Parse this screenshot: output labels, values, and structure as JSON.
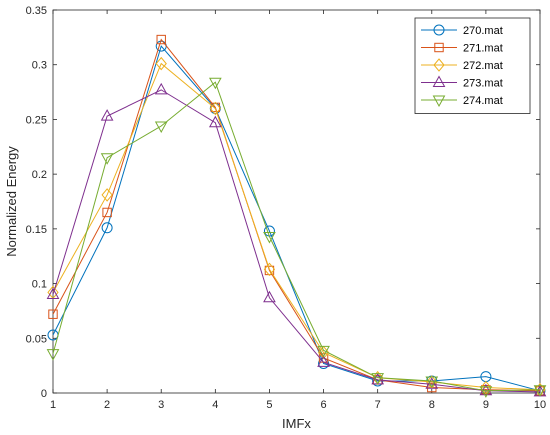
{
  "chart_data": {
    "type": "line",
    "title": "",
    "xlabel": "IMFx",
    "ylabel": "Normalized Energy",
    "x": [
      1,
      2,
      3,
      4,
      5,
      6,
      7,
      8,
      9,
      10
    ],
    "xlim": [
      1,
      10
    ],
    "ylim": [
      0,
      0.35
    ],
    "xticks": [
      "1",
      "2",
      "3",
      "4",
      "5",
      "6",
      "7",
      "8",
      "9",
      "10"
    ],
    "yticks": [
      "0",
      "0.05",
      "0.1",
      "0.15",
      "0.2",
      "0.25",
      "0.3",
      "0.35"
    ],
    "grid": false,
    "legend_position": "top-right",
    "series": [
      {
        "name": "270.mat",
        "color": "#0072BD",
        "marker": "circle",
        "values": [
          0.053,
          0.151,
          0.317,
          0.26,
          0.148,
          0.027,
          0.011,
          0.011,
          0.015,
          0.002
        ]
      },
      {
        "name": "271.mat",
        "color": "#D95319",
        "marker": "square",
        "values": [
          0.072,
          0.165,
          0.323,
          0.261,
          0.112,
          0.032,
          0.012,
          0.005,
          0.003,
          0.002
        ]
      },
      {
        "name": "272.mat",
        "color": "#EDB120",
        "marker": "diamond",
        "values": [
          0.092,
          0.181,
          0.301,
          0.26,
          0.113,
          0.037,
          0.014,
          0.01,
          0.005,
          0.003
        ]
      },
      {
        "name": "273.mat",
        "color": "#7E2F8E",
        "marker": "triangle-up",
        "values": [
          0.09,
          0.253,
          0.277,
          0.247,
          0.087,
          0.028,
          0.012,
          0.008,
          0.002,
          0.001
        ]
      },
      {
        "name": "274.mat",
        "color": "#77AC30",
        "marker": "triangle-down",
        "values": [
          0.036,
          0.215,
          0.244,
          0.284,
          0.143,
          0.039,
          0.014,
          0.011,
          0.002,
          0.003
        ]
      }
    ]
  }
}
